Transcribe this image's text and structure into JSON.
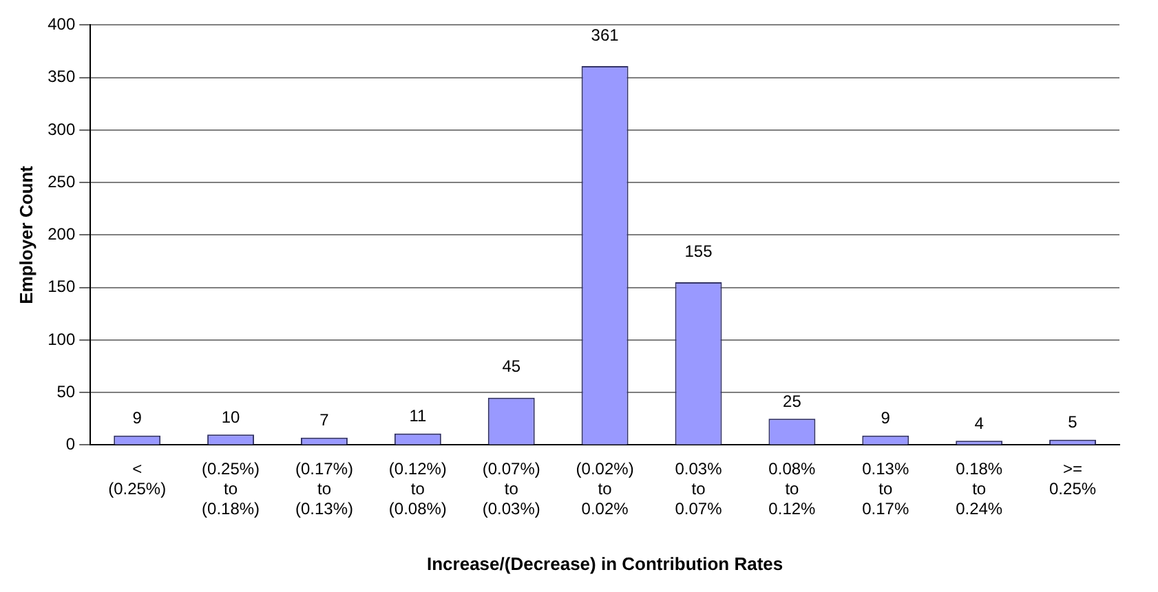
{
  "chart_data": {
    "type": "bar",
    "xlabel": "Increase/(Decrease) in Contribution Rates",
    "ylabel": "Employer Count",
    "categories": [
      "< (0.25%)",
      "(0.25%) to (0.18%)",
      "(0.17%) to (0.13%)",
      "(0.12%) to (0.08%)",
      "(0.07%) to (0.03%)",
      "(0.02%) to 0.02%",
      "0.03% to 0.07%",
      "0.08% to 0.12%",
      "0.13% to 0.17%",
      "0.18% to 0.24%",
      ">= 0.25%"
    ],
    "values": [
      9,
      10,
      7,
      11,
      45,
      361,
      155,
      25,
      9,
      4,
      5
    ],
    "color": "#9999ff",
    "ylim": [
      0,
      400
    ],
    "yticks": [
      0,
      50,
      100,
      150,
      200,
      250,
      300,
      350,
      400
    ],
    "grid": "y",
    "data_labels": true,
    "legend": false
  }
}
